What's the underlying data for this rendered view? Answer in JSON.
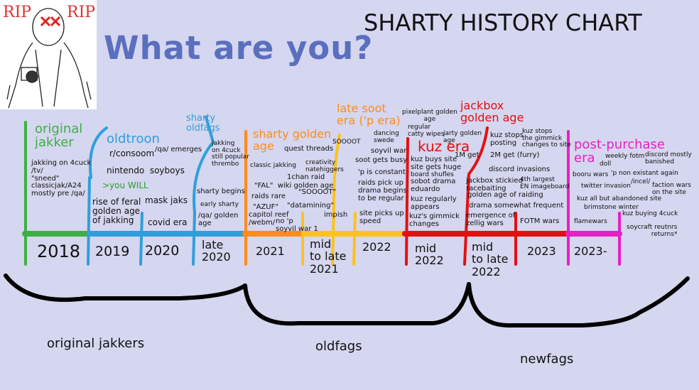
{
  "header": {
    "title": "SHARTY HISTORY CHART",
    "question": "What are you?",
    "meme_text": [
      "RIP",
      "RIP"
    ]
  },
  "colors": {
    "background": "#d5d6ef",
    "question_text": "#5b6fbf",
    "green": "#3cb043",
    "blue": "#2f9fdc",
    "orange": "#ff8c1a",
    "yellow": "#ffc21a",
    "red": "#e31010",
    "magenta": "#e81ec6"
  },
  "timeline": {
    "periods": [
      "2018",
      "2019",
      "2020",
      "late\n2020",
      "2021",
      "mid\nto late\n2021",
      "2022",
      "mid\n2022",
      "mid\nto late\n2022",
      "2023",
      "2023-"
    ]
  },
  "eras": [
    {
      "name": "original\njakker",
      "color": "green"
    },
    {
      "name": "oldtroon",
      "color": "blue"
    },
    {
      "name": "sharty\noldfags",
      "color": "blue"
    },
    {
      "name": "sharty golden\nage",
      "color": "orange"
    },
    {
      "name": "late soot\nera ('p era)",
      "color": "orange"
    },
    {
      "name": "kuz era",
      "color": "red"
    },
    {
      "name": "jackbox\ngolden age",
      "color": "red"
    },
    {
      "name": "post-purchase\nera",
      "color": "magenta"
    }
  ],
  "events": {
    "original_jakker": [
      "jakking on 4cuck\n/tv/\n\"sneed\"\nclassicjak/A24\nmostly pre /qa/"
    ],
    "oldtroon": [
      "r/consoom",
      "/qa/ emerges",
      "nintendo  soyboys",
      ">you WILL",
      "rise of feral\ngolden age\nof jakking",
      "mask jaks",
      "covid era"
    ],
    "sharty_oldfags": [
      "jakking\non 4cuck\nstill popular\nthrembo",
      "sharty begins",
      "early sharty",
      "/qa/ golden\nage"
    ],
    "sharty_golden_age": [
      "quest threads",
      "classic jakking",
      "creativity\nnatehiggers",
      "1chan raid",
      "\"FAL\"  wiki golden age",
      "raids rare",
      "\"SOOOOT\"",
      "\"AZUF\"",
      "\"datamining\"",
      "capitol reef\n/webm/",
      "impish",
      "no 'p\nsoyvil war 1"
    ],
    "late_soot_era": [
      "SOOOOT",
      "dancing\nswede",
      "soyvil war",
      "soot gets busy",
      "'p is constant",
      "raids pick up\ndrama begins\nto be regular",
      "site picks up\nspeed"
    ],
    "kuz_era": [
      "pixelplant golden\nage",
      "regular\ncatty wipes",
      "jarty golden\nage",
      "1M get",
      "kuz buys site\nsite gets huge",
      "board shufles",
      "sobot drama\neduardo",
      "kuz regularly\nappears",
      "kuz's gimmick\nchanges"
    ],
    "jackbox_golden_age": [
      "kuz stops\nposting",
      "kuz stops\nthe gimmick\nchanges to site",
      "2M get (furry)",
      "discord invasions",
      "jackbox stickied\nracebaiting",
      "4th largest\nEN imageboard",
      "golden age of raiding",
      "drama somewhat frequent",
      "emergence of\nzellig wars",
      "FOTM wars"
    ],
    "post_purchase_era": [
      "weekly fotm",
      "discord mostly\nbanished",
      "doll",
      "booru wars",
      "'p non existant again",
      "/incel/",
      "twitter invasion",
      "faction wars\non the site",
      "kuz all but abandoned site",
      "brimstone winter",
      "kuz buying 4cuck",
      "flamewars",
      "soycraft reutnrs\nreturns*"
    ]
  },
  "groups": [
    "original jakkers",
    "oldfags",
    "newfags"
  ]
}
